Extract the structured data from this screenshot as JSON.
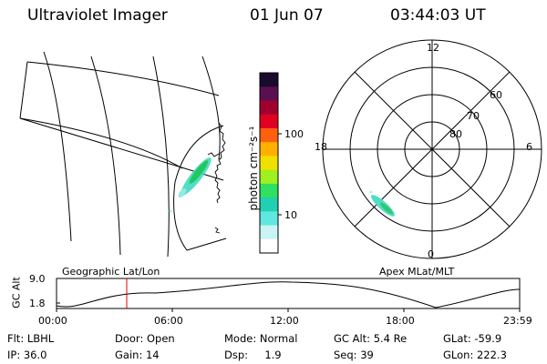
{
  "header": {
    "title": "Ultraviolet Imager",
    "date": "01 Jun 07",
    "time": "03:44:03 UT"
  },
  "left_map": {
    "label": "Geographic Lat/Lon"
  },
  "colorbar": {
    "unit_label": "photon cm⁻²s⁻¹",
    "ticks": [
      "100",
      "10"
    ],
    "colors": [
      "#1a0a2e",
      "#5a1050",
      "#a00030",
      "#e00020",
      "#ff6010",
      "#ffb000",
      "#f0e000",
      "#a0f020",
      "#30e060",
      "#20d0b0",
      "#60e8e0",
      "#c8f4f4",
      "#ffffff"
    ]
  },
  "polar_plot": {
    "label": "Apex MLat/MLT",
    "mlt_labels": {
      "top": "12",
      "bottom": "0",
      "left": "18",
      "right": "6"
    },
    "mlat_labels": [
      "60",
      "70",
      "80"
    ]
  },
  "timeline": {
    "axis_label": "GC Alt",
    "y_ticks": [
      "9.0",
      "1.8"
    ],
    "x_ticks": [
      "00:00",
      "06:00",
      "12:00",
      "18:00",
      "23:59"
    ],
    "marker_color": "#e00000"
  },
  "info": {
    "row1": [
      {
        "key": "Flt:",
        "value": "LBHL"
      },
      {
        "key": "Door:",
        "value": "Open"
      },
      {
        "key": "Mode:",
        "value": "Normal"
      },
      {
        "key": "GC Alt:",
        "value": "5.4 Re"
      },
      {
        "key": "GLat:",
        "value": "-59.9"
      }
    ],
    "row2": [
      {
        "key": "IP:",
        "value": "36.0"
      },
      {
        "key": "Gain:",
        "value": "14"
      },
      {
        "key": "Dsp:",
        "value": "1.9"
      },
      {
        "key": "Seq:",
        "value": "39"
      },
      {
        "key": "GLon:",
        "value": "222.3"
      }
    ]
  }
}
